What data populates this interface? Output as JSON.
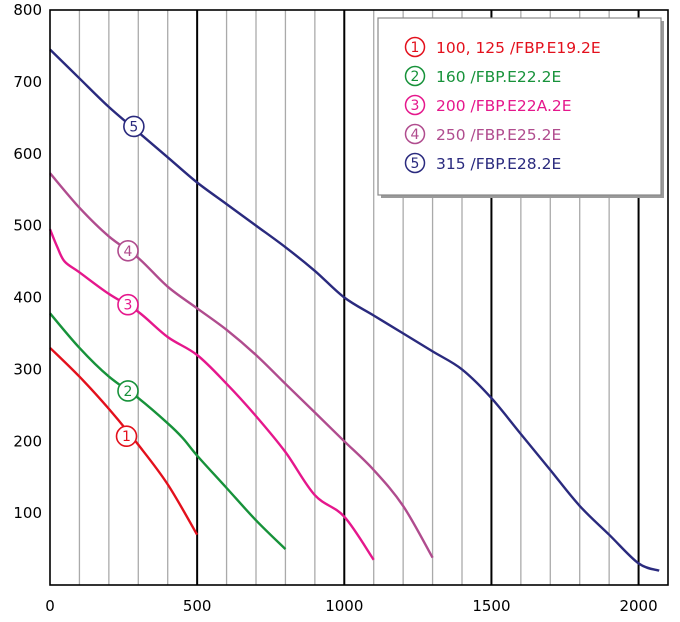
{
  "chart_data": {
    "type": "line",
    "title": "",
    "xlabel": "",
    "ylabel": "",
    "xlim": [
      0,
      2100
    ],
    "ylim": [
      0,
      800
    ],
    "x_ticks": [
      {
        "value": 0,
        "label": "0"
      },
      {
        "value": 500,
        "label": "500"
      },
      {
        "value": 1000,
        "label": "1000"
      },
      {
        "value": 1500,
        "label": "1500"
      },
      {
        "value": 2000,
        "label": "2000"
      }
    ],
    "y_ticks": [
      {
        "value": 100,
        "label": "100"
      },
      {
        "value": 200,
        "label": "200"
      },
      {
        "value": 300,
        "label": "300"
      },
      {
        "value": 400,
        "label": "400"
      },
      {
        "value": 500,
        "label": "500"
      },
      {
        "value": 600,
        "label": "600"
      },
      {
        "value": 700,
        "label": "700"
      },
      {
        "value": 800,
        "label": "800"
      }
    ],
    "x_minor_step": 100,
    "x_major_step": 500,
    "grid": "vertical",
    "legend_position": "top-right",
    "series": [
      {
        "marker": "1",
        "name": "100, 125 /FBP.E19.2E",
        "color": "#e3101c",
        "marker_at": [
          260,
          207
        ],
        "points": [
          [
            0,
            330
          ],
          [
            100,
            290
          ],
          [
            200,
            245
          ],
          [
            300,
            195
          ],
          [
            400,
            140
          ],
          [
            500,
            70
          ]
        ]
      },
      {
        "marker": "2",
        "name": "160 /FBP.E22.2E",
        "color": "#17923a",
        "marker_at": [
          265,
          270
        ],
        "points": [
          [
            0,
            378
          ],
          [
            100,
            330
          ],
          [
            200,
            290
          ],
          [
            300,
            260
          ],
          [
            400,
            225
          ],
          [
            450,
            205
          ],
          [
            500,
            180
          ],
          [
            600,
            135
          ],
          [
            700,
            90
          ],
          [
            800,
            50
          ]
        ]
      },
      {
        "marker": "3",
        "name": "200 /FBP.E22A.2E",
        "color": "#e5178c",
        "marker_at": [
          265,
          390
        ],
        "points": [
          [
            0,
            495
          ],
          [
            25,
            470
          ],
          [
            50,
            450
          ],
          [
            100,
            435
          ],
          [
            200,
            405
          ],
          [
            300,
            380
          ],
          [
            400,
            345
          ],
          [
            500,
            320
          ],
          [
            600,
            280
          ],
          [
            700,
            235
          ],
          [
            800,
            185
          ],
          [
            900,
            125
          ],
          [
            1000,
            95
          ],
          [
            1100,
            35
          ]
        ]
      },
      {
        "marker": "4",
        "name": "250 /FBP.E25.2E",
        "color": "#b04c8e",
        "marker_at": [
          265,
          465
        ],
        "points": [
          [
            0,
            573
          ],
          [
            100,
            525
          ],
          [
            200,
            485
          ],
          [
            300,
            455
          ],
          [
            400,
            415
          ],
          [
            500,
            385
          ],
          [
            600,
            355
          ],
          [
            700,
            320
          ],
          [
            800,
            280
          ],
          [
            900,
            240
          ],
          [
            1000,
            200
          ],
          [
            1100,
            160
          ],
          [
            1200,
            110
          ],
          [
            1300,
            38
          ]
        ]
      },
      {
        "marker": "5",
        "name": "315 /FBP.E28.2E",
        "color": "#2a2a7e",
        "marker_at": [
          285,
          638
        ],
        "points": [
          [
            0,
            745
          ],
          [
            100,
            705
          ],
          [
            200,
            665
          ],
          [
            300,
            630
          ],
          [
            400,
            595
          ],
          [
            500,
            560
          ],
          [
            600,
            530
          ],
          [
            700,
            500
          ],
          [
            800,
            470
          ],
          [
            900,
            437
          ],
          [
            1000,
            400
          ],
          [
            1100,
            375
          ],
          [
            1200,
            350
          ],
          [
            1300,
            325
          ],
          [
            1400,
            300
          ],
          [
            1500,
            260
          ],
          [
            1600,
            210
          ],
          [
            1700,
            160
          ],
          [
            1800,
            110
          ],
          [
            1900,
            70
          ],
          [
            2000,
            30
          ],
          [
            2070,
            20
          ]
        ]
      }
    ]
  }
}
